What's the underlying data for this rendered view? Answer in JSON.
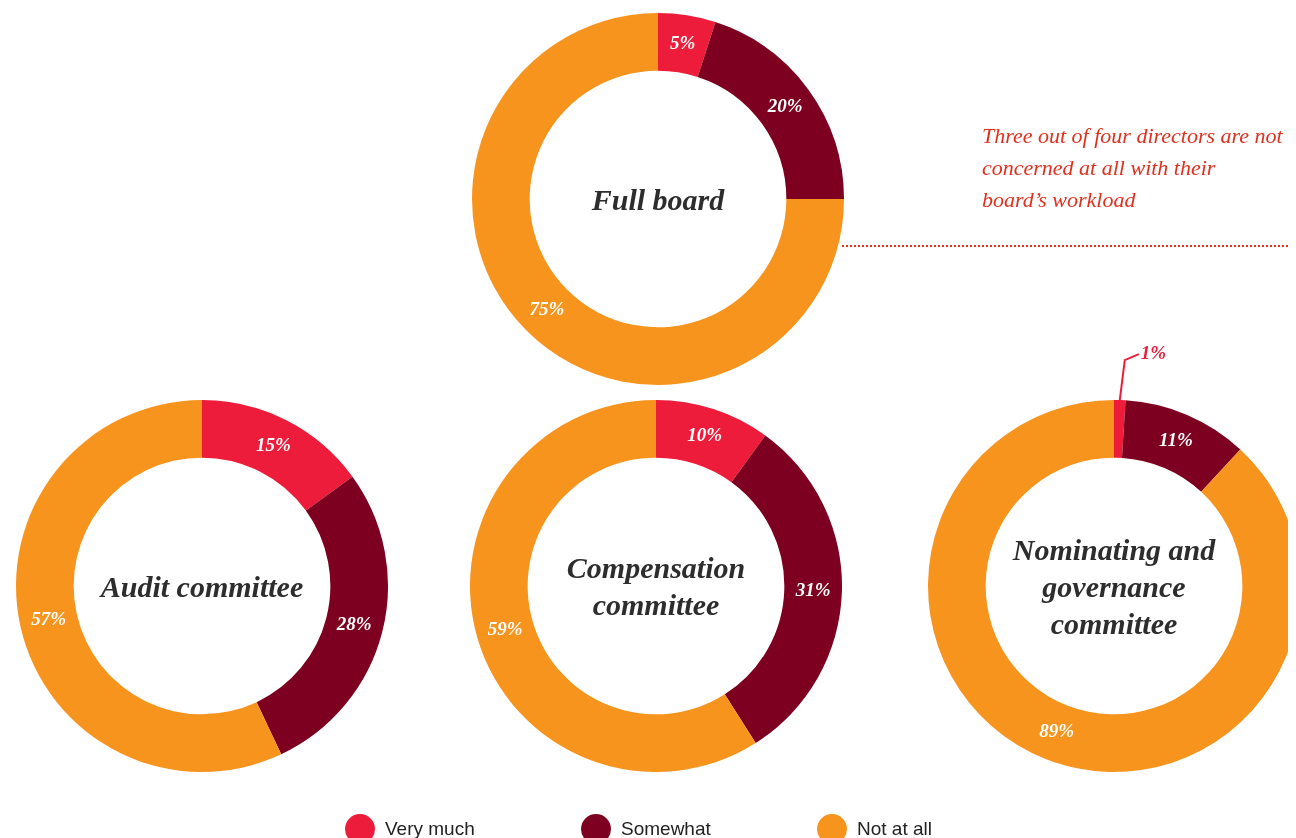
{
  "chart_data": [
    {
      "type": "donut",
      "title": "Full board",
      "categories": [
        "Very much",
        "Somewhat",
        "Not at all"
      ],
      "values": [
        5,
        20,
        75
      ],
      "value_labels": [
        "5%",
        "20%",
        "75%"
      ],
      "colors": [
        "#ed1c3a",
        "#7d0020",
        "#f7941d"
      ],
      "legend": "bottom",
      "annotations": [
        "Three out of four directors are not concerned at all with their board’s workload"
      ]
    },
    {
      "type": "donut",
      "title": "Audit committee",
      "categories": [
        null,
        null,
        null
      ],
      "values": [
        15,
        28,
        57
      ],
      "value_labels": [
        "15%",
        "28%",
        "57%"
      ],
      "colors": [
        "#ed1c3a",
        "#7d0020",
        "#f7941d"
      ]
    },
    {
      "type": "donut",
      "title": "Compensation committee",
      "categories": [
        null,
        null,
        null
      ],
      "values": [
        10,
        31,
        59
      ],
      "value_labels": [
        "10%",
        "31%",
        "59%"
      ],
      "colors": [
        "#ed1c3a",
        "#7d0020",
        "#f7941d"
      ]
    },
    {
      "type": "donut",
      "title": "Nominating and governance committee",
      "categories": [
        null,
        null,
        null
      ],
      "values": [
        1,
        11,
        89
      ],
      "value_labels": [
        "1%",
        "11%",
        "89%"
      ],
      "colors": [
        "#ed1c3a",
        "#7d0020",
        "#f7941d"
      ]
    }
  ]
}
